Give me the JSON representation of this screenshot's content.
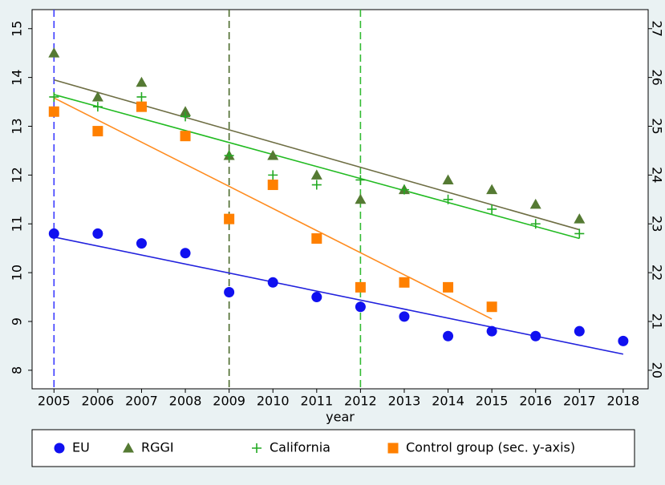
{
  "chart_data": {
    "type": "scatter",
    "x_label": "year",
    "x": [
      2005,
      2006,
      2007,
      2008,
      2009,
      2010,
      2011,
      2012,
      2013,
      2014,
      2015,
      2016,
      2017,
      2018
    ],
    "xlim": [
      2004.5,
      2018.57
    ],
    "xticks": [
      2005,
      2006,
      2007,
      2008,
      2009,
      2010,
      2011,
      2012,
      2013,
      2014,
      2015,
      2016,
      2017,
      2018
    ],
    "ylim": [
      7.62,
      15.39
    ],
    "yticks": [
      8,
      9,
      10,
      11,
      12,
      13,
      14,
      15
    ],
    "y2lim": [
      19.62,
      27.39
    ],
    "y2ticks": [
      20,
      21,
      22,
      23,
      24,
      25,
      26,
      27
    ],
    "grid": false,
    "legend_position": "bottom",
    "vlines": [
      {
        "x": 2005,
        "color": "#3b3bff"
      },
      {
        "x": 2009,
        "color": "#4a6a2a"
      },
      {
        "x": 2012,
        "color": "#33bb33"
      }
    ],
    "series": [
      {
        "name": "EU",
        "color": "#1010f0",
        "marker": "circle",
        "values": [
          10.8,
          10.8,
          10.6,
          10.4,
          9.6,
          9.8,
          9.5,
          9.3,
          9.1,
          8.7,
          8.8,
          8.7,
          8.8,
          8.6
        ],
        "fit": {
          "x": [
            2005,
            2018
          ],
          "values": [
            10.73,
            8.33
          ],
          "color": "#2222dd"
        }
      },
      {
        "name": "RGGI",
        "color": "#557a33",
        "marker": "triangle",
        "values": [
          14.5,
          13.6,
          13.9,
          13.3,
          12.4,
          12.4,
          12.0,
          11.5,
          11.7,
          11.9,
          11.7,
          11.4,
          11.1,
          null
        ],
        "fit": {
          "x": [
            2005,
            2017
          ],
          "values": [
            13.95,
            10.88
          ],
          "color": "#6e6e44"
        }
      },
      {
        "name": "California",
        "color": "#22aa22",
        "marker": "plus",
        "values": [
          13.6,
          13.4,
          13.6,
          13.2,
          12.4,
          12.0,
          11.8,
          11.9,
          11.7,
          11.5,
          11.3,
          11.0,
          10.8,
          null
        ],
        "fit": {
          "x": [
            2005,
            2017
          ],
          "values": [
            13.65,
            10.7
          ],
          "color": "#22bb22"
        }
      },
      {
        "name": "Control group (sec. y-axis)",
        "color": "#ff8000",
        "marker": "square",
        "axis": "y2",
        "values": [
          25.3,
          24.9,
          25.4,
          24.8,
          23.1,
          23.8,
          22.7,
          21.7,
          21.8,
          21.7,
          21.3,
          null,
          null,
          null
        ],
        "fit": {
          "x": [
            2005,
            2015
          ],
          "values": [
            25.58,
            21.05
          ],
          "color": "#ff8c20"
        }
      }
    ]
  }
}
